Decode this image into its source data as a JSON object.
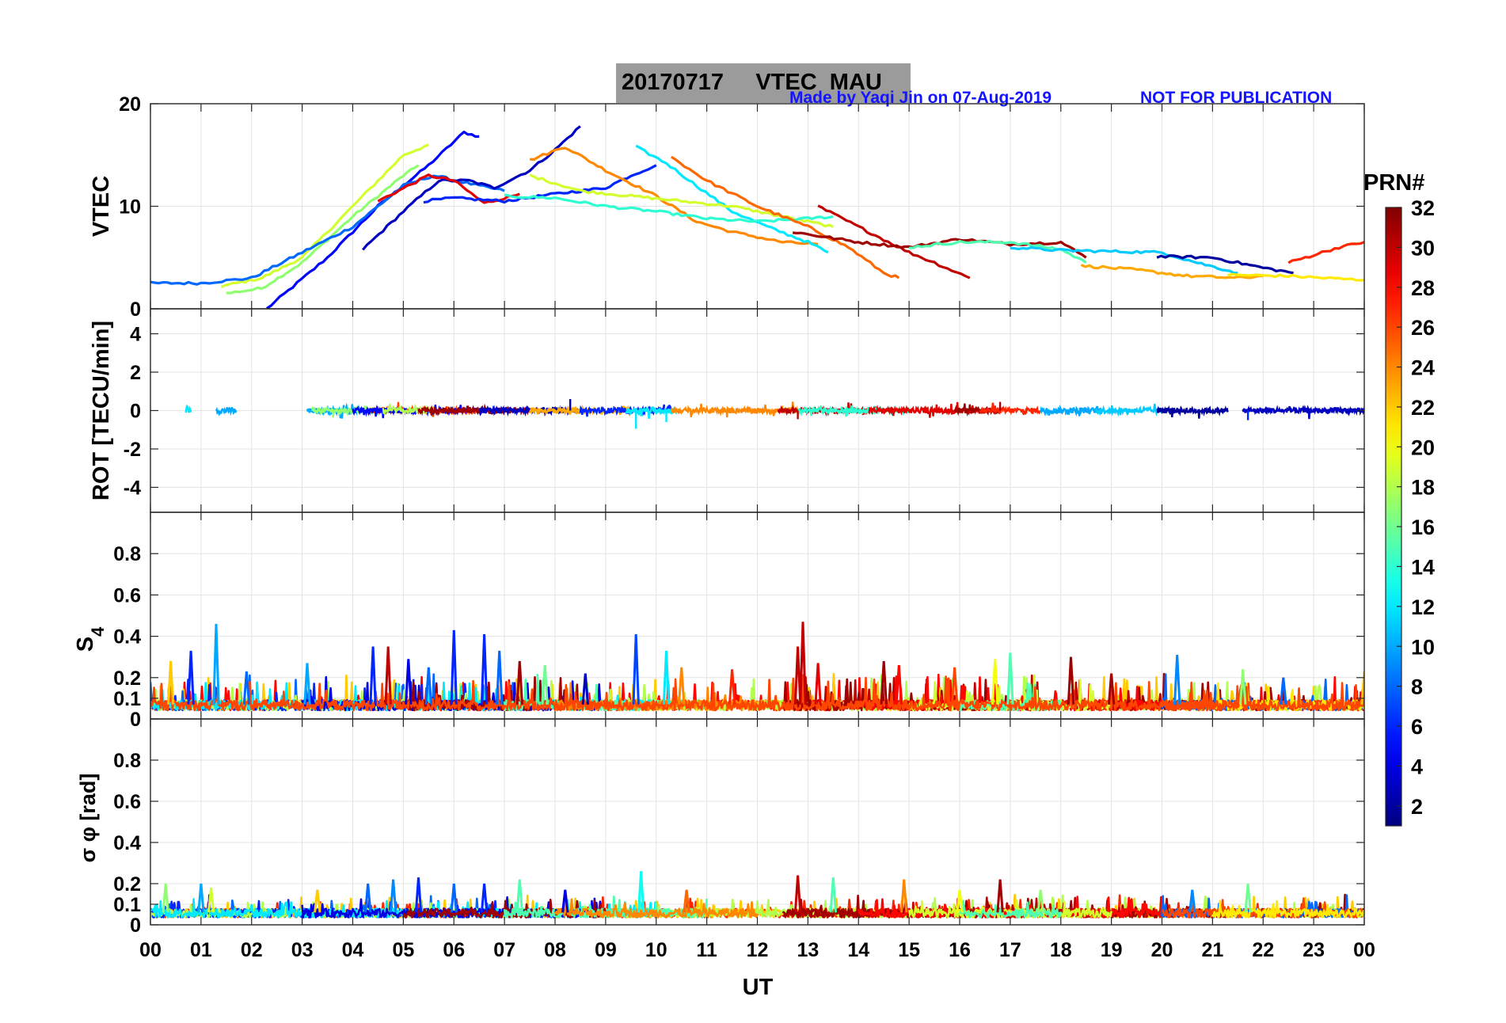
{
  "figure": {
    "title_date": "20170717",
    "title_kind": "VTEC  MAU",
    "credit": "Made by Yaqi Jin on 07-Aug-2019",
    "notice": "NOT FOR PUBLICATION",
    "xlabel": "UT"
  },
  "colorbar": {
    "label": "PRN#",
    "range": [
      1,
      32
    ],
    "ticks": [
      2,
      4,
      6,
      8,
      10,
      12,
      14,
      16,
      18,
      20,
      22,
      24,
      26,
      28,
      30,
      32
    ],
    "colormap": "jet"
  },
  "chart_data": [
    {
      "type": "line",
      "panel": "vtec",
      "ylabel": "VTEC",
      "xlim": [
        0,
        24
      ],
      "ylim": [
        0,
        20
      ],
      "yticks": [
        0,
        10,
        20
      ],
      "xtick_labels": [
        "00",
        "01",
        "02",
        "03",
        "04",
        "05",
        "06",
        "07",
        "08",
        "09",
        "10",
        "11",
        "12",
        "13",
        "14",
        "15",
        "16",
        "17",
        "18",
        "19",
        "20",
        "21",
        "22",
        "23",
        "00"
      ],
      "grid": true,
      "series": [
        {
          "prn": 5,
          "points": [
            [
              2.3,
              0
            ],
            [
              3.5,
              5
            ],
            [
              4.5,
              10
            ],
            [
              5.5,
              14
            ],
            [
              6.2,
              17.2
            ],
            [
              6.5,
              16.8
            ]
          ]
        },
        {
          "prn": 17,
          "points": [
            [
              1.5,
              1.5
            ],
            [
              2.2,
              2
            ],
            [
              3,
              4.5
            ],
            [
              4,
              9
            ],
            [
              5,
              13
            ],
            [
              5.3,
              14
            ]
          ]
        },
        {
          "prn": 19,
          "points": [
            [
              1.4,
              2.2
            ],
            [
              2.2,
              3
            ],
            [
              3,
              5
            ],
            [
              4,
              10
            ],
            [
              5,
              15
            ],
            [
              5.5,
              16
            ]
          ]
        },
        {
          "prn": 8,
          "points": [
            [
              0,
              2.5
            ],
            [
              1,
              2.5
            ],
            [
              2,
              3
            ],
            [
              3,
              5.5
            ],
            [
              4,
              8
            ],
            [
              5,
              12
            ],
            [
              5.6,
              13
            ],
            [
              6.5,
              12
            ],
            [
              7,
              11.5
            ]
          ]
        },
        {
          "prn": 3,
          "points": [
            [
              4.2,
              5.8
            ],
            [
              5,
              9.5
            ],
            [
              5.7,
              12.5
            ],
            [
              6.3,
              12.5
            ],
            [
              6.8,
              11.8
            ],
            [
              7.5,
              13.5
            ],
            [
              8,
              15.5
            ],
            [
              8.5,
              17.8
            ]
          ]
        },
        {
          "prn": 29,
          "points": [
            [
              4.5,
              10.5
            ],
            [
              5.5,
              13
            ],
            [
              6,
              12.5
            ],
            [
              6.6,
              10.3
            ],
            [
              7,
              10.8
            ],
            [
              7.3,
              11.2
            ]
          ]
        },
        {
          "prn": 6,
          "points": [
            [
              5.4,
              10.5
            ],
            [
              6,
              10.8
            ],
            [
              7,
              10.5
            ],
            [
              8,
              11.2
            ],
            [
              9,
              11.8
            ],
            [
              9.5,
              13
            ],
            [
              10,
              14
            ]
          ]
        },
        {
          "prn": 24,
          "points": [
            [
              7.5,
              14.5
            ],
            [
              8.2,
              15.8
            ],
            [
              9,
              13.5
            ],
            [
              10,
              11
            ],
            [
              10.8,
              8.5
            ],
            [
              11.5,
              7.5
            ],
            [
              12.5,
              6.5
            ],
            [
              13.2,
              6.3
            ]
          ]
        },
        {
          "prn": 12,
          "points": [
            [
              9.6,
              15.8
            ],
            [
              10.2,
              14.2
            ],
            [
              10.8,
              12
            ],
            [
              11.5,
              9.5
            ],
            [
              12.2,
              8
            ],
            [
              13,
              6.5
            ],
            [
              13.4,
              5.5
            ]
          ]
        },
        {
          "prn": 19,
          "points": [
            [
              7.5,
              13
            ],
            [
              8.5,
              11.5
            ],
            [
              9.5,
              11
            ],
            [
              10.5,
              10.5
            ],
            [
              11.5,
              10
            ],
            [
              12.5,
              9
            ],
            [
              13.5,
              8
            ]
          ]
        },
        {
          "prn": 14,
          "points": [
            [
              7,
              11
            ],
            [
              8,
              10.8
            ],
            [
              9,
              10
            ],
            [
              10,
              9.5
            ],
            [
              11,
              8.8
            ],
            [
              12,
              8.5
            ],
            [
              13,
              8.8
            ],
            [
              13.5,
              9
            ]
          ]
        },
        {
          "prn": 25,
          "points": [
            [
              10.3,
              14.8
            ],
            [
              11,
              12.5
            ],
            [
              12,
              10
            ],
            [
              13,
              8
            ],
            [
              13.8,
              6
            ],
            [
              14.5,
              3.5
            ],
            [
              14.8,
              3
            ]
          ]
        },
        {
          "prn": 30,
          "points": [
            [
              13.2,
              10
            ],
            [
              14,
              8
            ],
            [
              15,
              5.5
            ],
            [
              15.5,
              4.5
            ],
            [
              16.2,
              3
            ]
          ]
        },
        {
          "prn": 31,
          "points": [
            [
              12.7,
              7.5
            ],
            [
              14,
              6.5
            ],
            [
              15,
              6
            ],
            [
              16,
              6.8
            ],
            [
              17,
              6.3
            ],
            [
              18,
              6.5
            ],
            [
              18.5,
              5
            ]
          ]
        },
        {
          "prn": 15,
          "points": [
            [
              15,
              6
            ],
            [
              16,
              6.5
            ],
            [
              17,
              6.5
            ],
            [
              18,
              5.8
            ],
            [
              18.5,
              4.5
            ]
          ]
        },
        {
          "prn": 11,
          "points": [
            [
              17,
              6
            ],
            [
              18,
              5.7
            ],
            [
              19,
              5.6
            ],
            [
              20,
              5.5
            ],
            [
              20.7,
              4.5
            ],
            [
              21.5,
              3.5
            ]
          ]
        },
        {
          "prn": 23,
          "points": [
            [
              18.4,
              4.2
            ],
            [
              19.5,
              3.8
            ],
            [
              20.5,
              3.2
            ],
            [
              21.5,
              3
            ],
            [
              22,
              3.2
            ]
          ]
        },
        {
          "prn": 2,
          "points": [
            [
              19.9,
              5.1
            ],
            [
              21,
              5
            ],
            [
              22,
              4
            ],
            [
              22.6,
              3.5
            ]
          ]
        },
        {
          "prn": 27,
          "points": [
            [
              22.5,
              4.5
            ],
            [
              23.5,
              6
            ],
            [
              24,
              6.5
            ]
          ]
        },
        {
          "prn": 21,
          "points": [
            [
              21.3,
              3.3
            ],
            [
              22.5,
              3.2
            ],
            [
              24,
              2.8
            ]
          ]
        }
      ]
    },
    {
      "type": "scatter",
      "panel": "rot",
      "ylabel": "ROT [TECU/min]",
      "xlim": [
        0,
        24
      ],
      "ylim": [
        -5.3,
        5.3
      ],
      "yticks": [
        -4,
        -2,
        0,
        2,
        4
      ],
      "grid": true,
      "note": "ROT stays close to 0 for all PRNs; largest excursion ~ -1 near 09.6 UT"
    },
    {
      "type": "line",
      "panel": "s4",
      "ylabel": "S4",
      "xlim": [
        0,
        24
      ],
      "ylim": [
        0,
        1
      ],
      "yticks": [
        0,
        0.1,
        0.2,
        0.4,
        0.6,
        0.8
      ],
      "ytick_labels": [
        "0",
        "0.1",
        "0.2",
        "0.4",
        "0.6",
        "0.8"
      ],
      "grid": true,
      "series_peaks": [
        {
          "prn": 10,
          "x": 1.3,
          "value": 0.46
        },
        {
          "prn": 6,
          "x": 6.0,
          "value": 0.43
        },
        {
          "prn": 7,
          "x": 9.6,
          "value": 0.41
        },
        {
          "prn": 30,
          "x": 12.9,
          "value": 0.47
        },
        {
          "prn": 31,
          "x": 18.2,
          "value": 0.29
        }
      ],
      "baseline": 0.07
    },
    {
      "type": "line",
      "panel": "sigma_phi",
      "ylabel": "σ φ [rad]",
      "xlim": [
        0,
        24
      ],
      "ylim": [
        0,
        1
      ],
      "yticks": [
        0,
        0.1,
        0.2,
        0.4,
        0.6,
        0.8
      ],
      "ytick_labels": [
        "0",
        "0.1",
        "0.2",
        "0.4",
        "0.6",
        "0.8"
      ],
      "grid": true,
      "series_peaks": [
        {
          "prn": 13,
          "x": 9.7,
          "value": 0.26
        },
        {
          "prn": 30,
          "x": 12.8,
          "value": 0.24
        },
        {
          "prn": 27,
          "x": 16.8,
          "value": 0.22
        }
      ],
      "baseline": 0.06
    }
  ]
}
